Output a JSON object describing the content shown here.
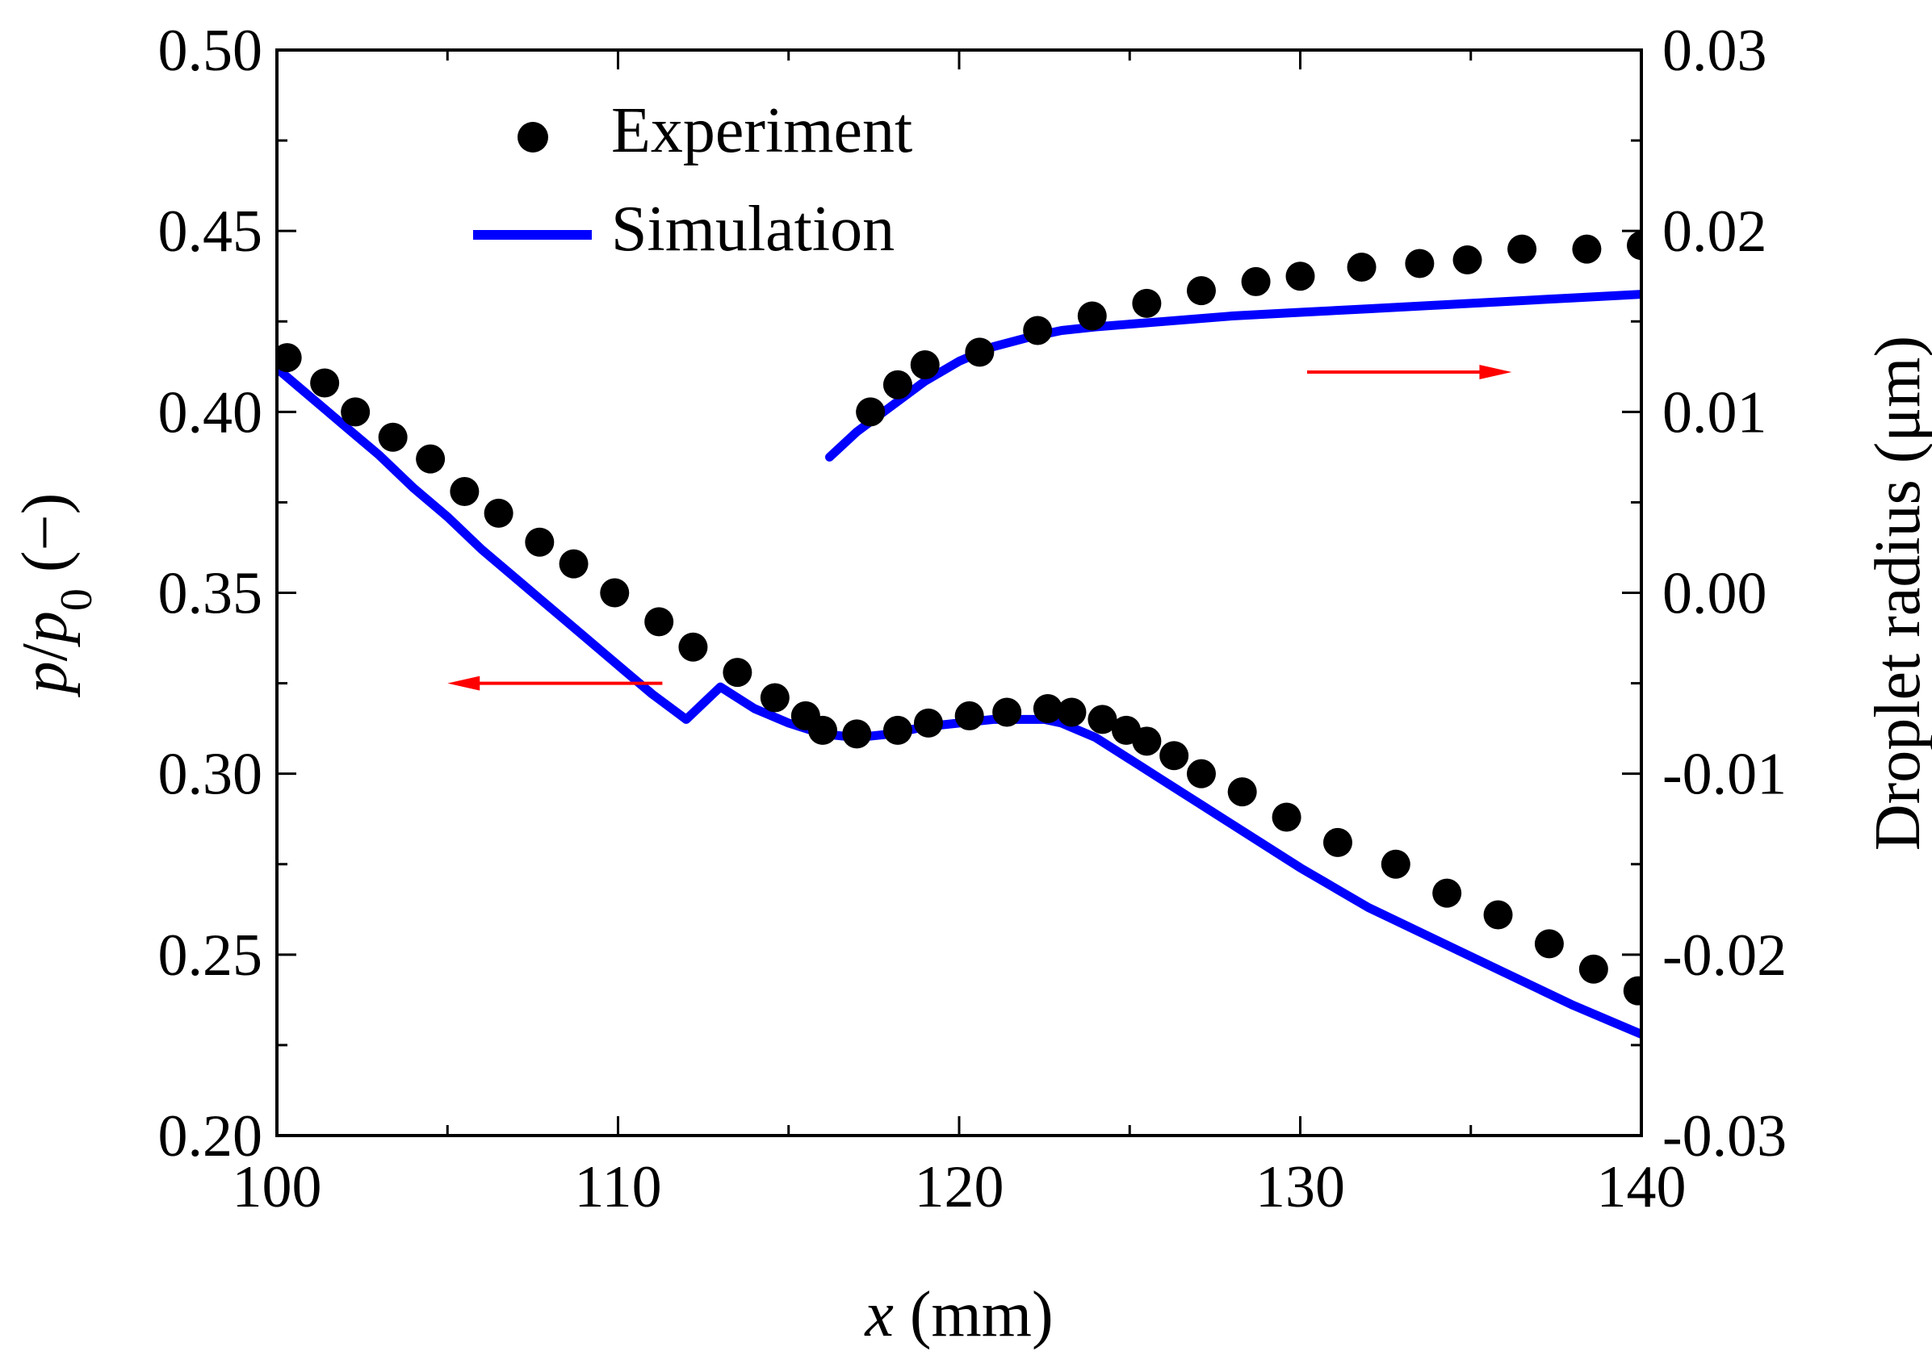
{
  "chart_data": {
    "type": "scatter+line",
    "xlabel": {
      "italic": "x",
      "unit": "(mm)"
    },
    "ylabel_left": {
      "p": "p",
      "slash": "/",
      "p0_base": "p",
      "p0_sub": "0",
      "unit": "(−)"
    },
    "ylabel_right": "Droplet radius (μm)",
    "xlim": [
      100,
      140
    ],
    "ylim_left": [
      0.2,
      0.5
    ],
    "ylim_right": [
      -0.03,
      0.03
    ],
    "x_ticks": [
      "100",
      "110",
      "120",
      "130",
      "140"
    ],
    "y_left_ticks": [
      "0.20",
      "0.25",
      "0.30",
      "0.35",
      "0.40",
      "0.45",
      "0.50"
    ],
    "y_right_ticks": [
      "-0.03",
      "-0.02",
      "-0.01",
      "0.00",
      "0.01",
      "0.02",
      "0.03"
    ],
    "legend": {
      "position": "top-left",
      "experiment": "Experiment",
      "simulation": "Simulation"
    },
    "colors": {
      "simulation": "#0000ff",
      "experiment": "#000000",
      "arrow": "#ff0000"
    },
    "series": [
      {
        "name": "Experiment (pressure)",
        "axis": "left",
        "kind": "markers",
        "x": [
          100.3,
          101.4,
          102.3,
          103.4,
          104.5,
          105.5,
          106.5,
          107.7,
          108.7,
          109.9,
          111.2,
          112.2,
          113.5,
          114.6,
          115.5,
          116.0,
          117.0,
          118.2,
          119.1,
          120.3,
          121.4,
          122.6,
          123.3,
          124.2,
          124.9,
          125.5,
          126.3,
          127.1,
          128.3,
          129.6,
          131.1,
          132.8,
          134.3,
          135.8,
          137.3,
          138.6,
          139.9
        ],
        "y": [
          0.415,
          0.408,
          0.4,
          0.393,
          0.387,
          0.378,
          0.372,
          0.364,
          0.358,
          0.35,
          0.342,
          0.335,
          0.328,
          0.321,
          0.316,
          0.312,
          0.311,
          0.312,
          0.314,
          0.316,
          0.317,
          0.318,
          0.317,
          0.315,
          0.312,
          0.309,
          0.305,
          0.3,
          0.295,
          0.288,
          0.281,
          0.275,
          0.267,
          0.261,
          0.253,
          0.246,
          0.24
        ]
      },
      {
        "name": "Simulation (pressure)",
        "axis": "left",
        "kind": "line",
        "x": [
          100,
          101,
          102,
          103,
          104,
          105,
          106,
          107,
          108,
          109,
          110,
          111,
          112,
          113,
          114,
          115,
          116,
          117,
          118,
          119,
          120,
          121,
          122,
          122.5,
          123,
          124,
          125,
          126,
          127,
          128,
          129,
          130,
          132,
          134,
          136,
          138,
          140
        ],
        "y": [
          0.412,
          0.404,
          0.396,
          0.388,
          0.379,
          0.371,
          0.362,
          0.354,
          0.346,
          0.338,
          0.33,
          0.322,
          0.315,
          0.324,
          0.318,
          0.314,
          0.311,
          0.31,
          0.311,
          0.313,
          0.314,
          0.315,
          0.315,
          0.315,
          0.314,
          0.31,
          0.304,
          0.298,
          0.292,
          0.286,
          0.28,
          0.274,
          0.263,
          0.254,
          0.245,
          0.236,
          0.228
        ]
      },
      {
        "name": "Experiment (droplet radius)",
        "axis": "right",
        "kind": "markers",
        "x": [
          117.4,
          118.2,
          119.0,
          120.6,
          122.3,
          123.9,
          125.5,
          127.1,
          128.7,
          130.0,
          131.8,
          133.5,
          134.9,
          136.5,
          138.4,
          140.0
        ],
        "y": [
          0.01,
          0.0115,
          0.0126,
          0.0133,
          0.0145,
          0.0153,
          0.016,
          0.0167,
          0.0172,
          0.0175,
          0.018,
          0.0182,
          0.0184,
          0.019,
          0.019,
          0.0192
        ]
      },
      {
        "name": "Simulation (droplet radius)",
        "axis": "right",
        "kind": "line",
        "x": [
          116.2,
          117,
          118,
          119,
          120,
          121,
          122,
          123,
          124,
          126,
          128,
          130,
          132,
          134,
          136,
          138,
          140
        ],
        "y": [
          0.0075,
          0.0089,
          0.0103,
          0.0117,
          0.0128,
          0.0136,
          0.0141,
          0.0145,
          0.0147,
          0.015,
          0.0153,
          0.0155,
          0.0157,
          0.0159,
          0.0161,
          0.0163,
          0.0165
        ]
      }
    ],
    "annotations": [
      {
        "kind": "arrow",
        "points_to": "left axis",
        "x_from": 111.3,
        "x_to": 105.0,
        "y_left": 0.325
      },
      {
        "kind": "arrow",
        "points_to": "right axis",
        "x_from": 130.2,
        "x_to": 136.2,
        "y_left": 0.411
      }
    ]
  }
}
